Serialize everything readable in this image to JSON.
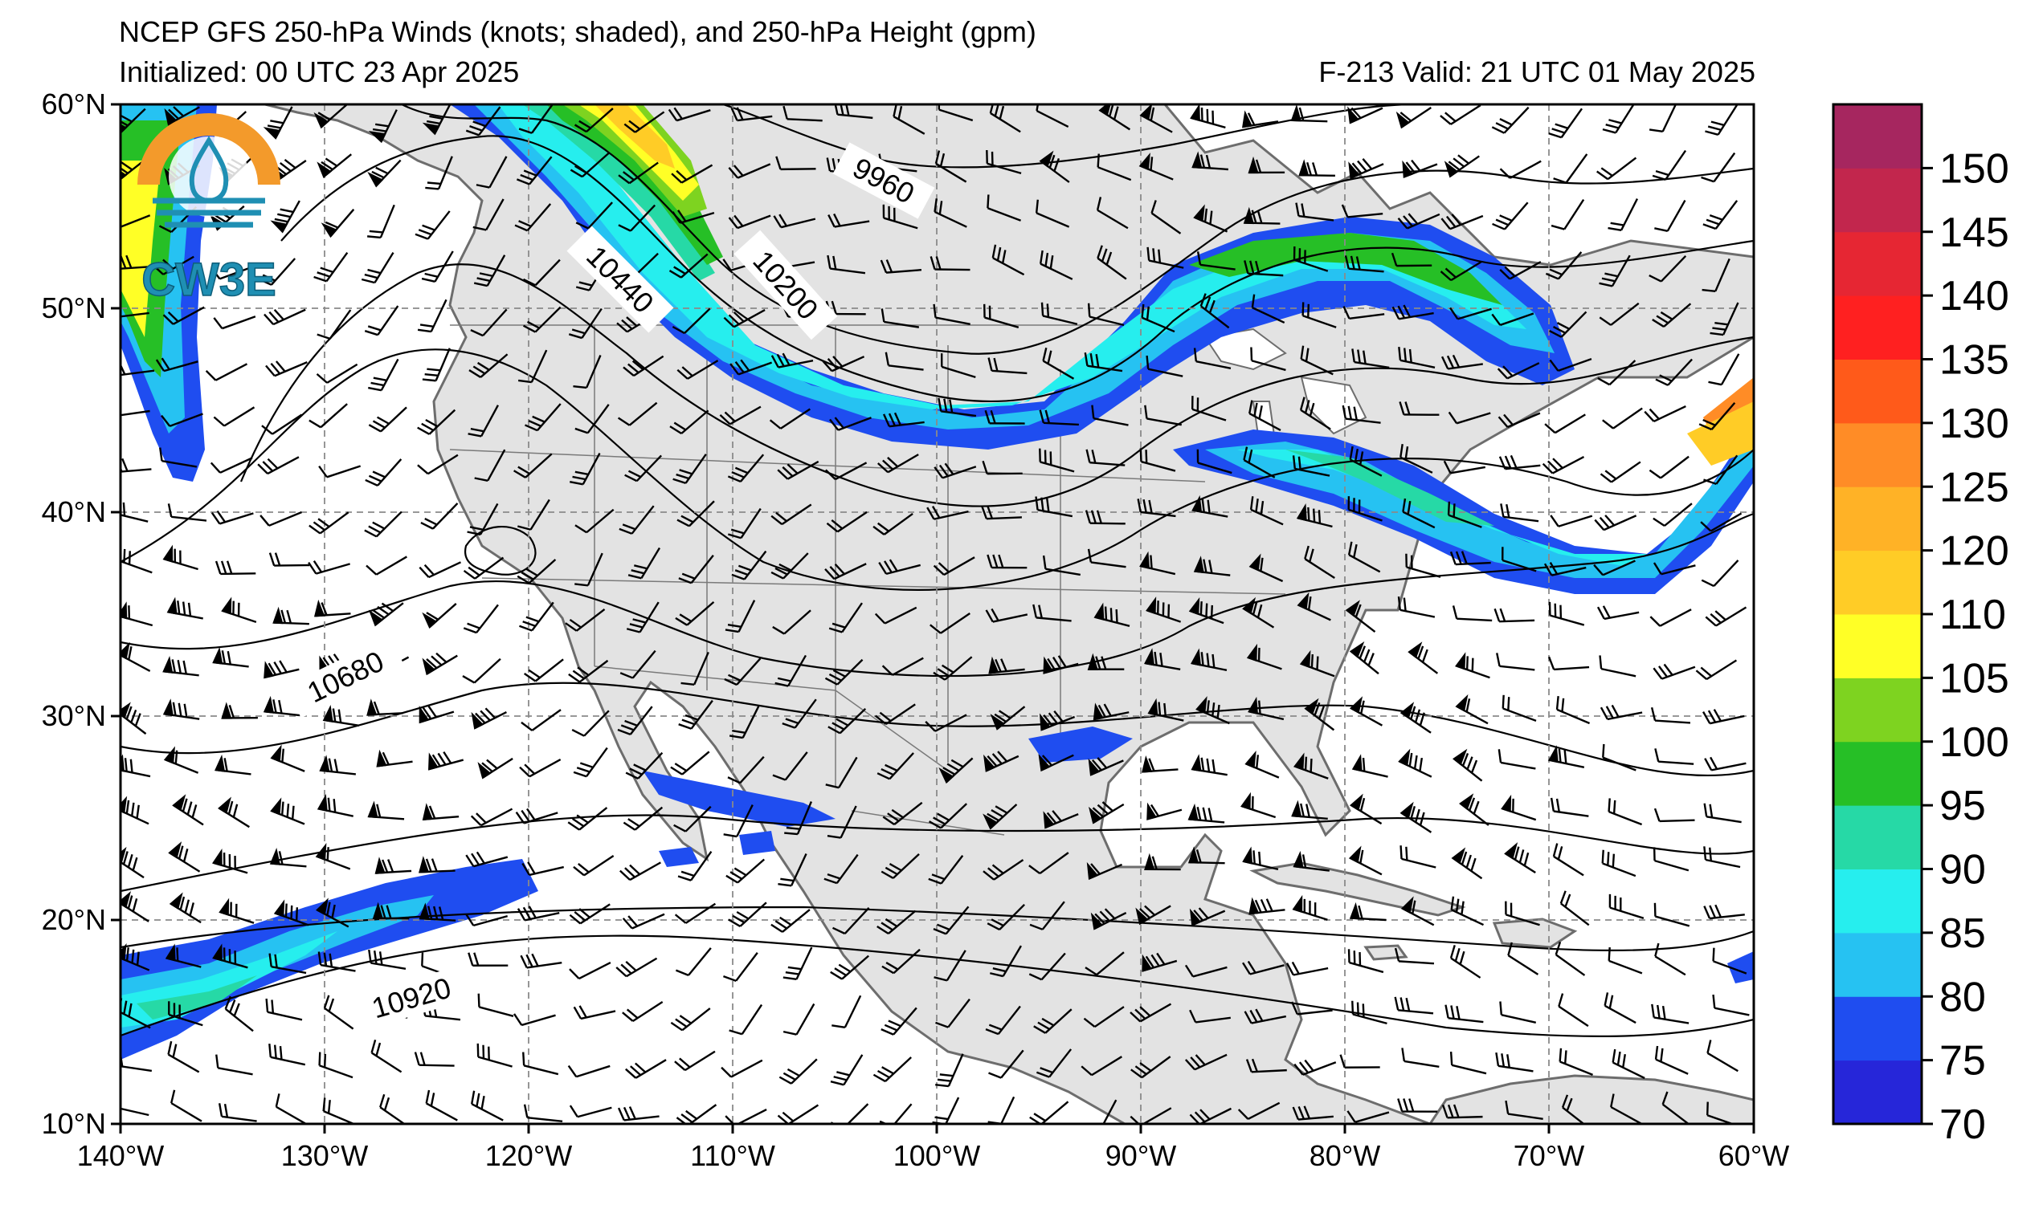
{
  "header": {
    "title": "NCEP GFS 250-hPa Winds (knots; shaded), and 250-hPa Height (gpm)",
    "initialized": "Initialized: 00 UTC 23 Apr 2025",
    "forecast": "F-213  Valid: 21 UTC 01 May 2025"
  },
  "logo": {
    "text": "CW3E",
    "ring_color": "#f39a2b",
    "accent_color": "#1f8fb3"
  },
  "axes": {
    "lat_labels": [
      "60°N",
      "50°N",
      "40°N",
      "30°N",
      "20°N",
      "10°N"
    ],
    "lon_labels": [
      "140°W",
      "130°W",
      "120°W",
      "110°W",
      "100°W",
      "90°W",
      "80°W",
      "70°W",
      "60°W"
    ],
    "lat_range": [
      10,
      60
    ],
    "lon_range": [
      -140,
      -60
    ],
    "grid": true
  },
  "contour_labels": [
    "9960",
    "10200",
    "10440",
    "10680",
    "10920"
  ],
  "colorbar": {
    "levels": [
      "70",
      "75",
      "80",
      "85",
      "90",
      "95",
      "100",
      "105",
      "110",
      "115",
      "120",
      "125",
      "130",
      "135",
      "140",
      "145",
      "150",
      "155"
    ],
    "tick_labels": [
      "70",
      "75",
      "80",
      "85",
      "90",
      "95",
      "100",
      "105",
      "110",
      "120",
      "125",
      "130",
      "135",
      "140",
      "145",
      "150"
    ],
    "colors": [
      "#2626d9",
      "#1f4df0",
      "#26c2f2",
      "#26eeee",
      "#26d9a6",
      "#26bf26",
      "#7ed320",
      "#ffff26",
      "#ffcc26",
      "#ffb226",
      "#ff8c26",
      "#ff5a1a",
      "#ff2020",
      "#e62633",
      "#c2264d",
      "#a6265f",
      "#8c2680",
      "#7a268c"
    ]
  }
}
